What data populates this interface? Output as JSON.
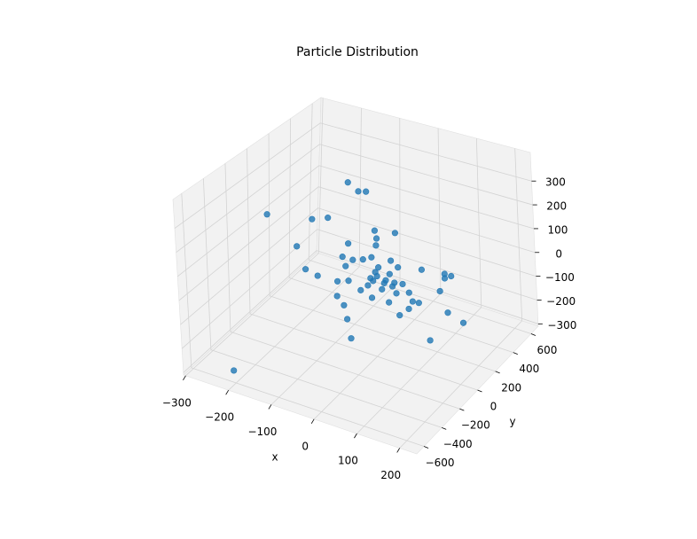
{
  "chart_data": {
    "type": "scatter3d",
    "title": "Particle Distribution",
    "x_label": "x",
    "y_label": "y",
    "color": "#1f77b4",
    "xlim": [
      -305,
      240
    ],
    "ylim": [
      -680,
      680
    ],
    "zlim": [
      -310,
      420
    ],
    "xticks": [
      {
        "value": -300,
        "label": "−300"
      },
      {
        "value": -200,
        "label": "−200"
      },
      {
        "value": -100,
        "label": "−100"
      },
      0,
      100,
      200
    ],
    "yticks": [
      {
        "value": -600,
        "label": "−600"
      },
      {
        "value": -400,
        "label": "−400"
      },
      {
        "value": -200,
        "label": "−200"
      },
      0,
      200,
      400,
      600
    ],
    "zticks": [
      {
        "value": -300,
        "label": "−300"
      },
      {
        "value": -200,
        "label": "−200"
      },
      {
        "value": -100,
        "label": "−100"
      },
      0,
      100,
      200,
      300
    ],
    "grid": true,
    "x": [
      -58,
      -33,
      -14,
      -259,
      -149,
      -110,
      -188,
      -62,
      4,
      54,
      8,
      6,
      -168,
      -139,
      -77,
      -70,
      -52,
      -27,
      -6,
      41,
      58,
      116,
      172,
      172,
      188,
      159,
      -91,
      -64,
      -93,
      -77,
      -70,
      -62,
      -8,
      33,
      58,
      81,
      91,
      106,
      83,
      130,
      176,
      213,
      -204,
      -17,
      6,
      27,
      48,
      17,
      -4,
      37,
      68,
      -35,
      52,
      2,
      23,
      -10,
      43,
      10
    ],
    "y": [
      0,
      0,
      0,
      0,
      0,
      0,
      0,
      0,
      0,
      0,
      0,
      0,
      0,
      0,
      0,
      0,
      0,
      0,
      0,
      0,
      0,
      0,
      0,
      0,
      0,
      0,
      0,
      0,
      0,
      0,
      0,
      0,
      0,
      0,
      0,
      0,
      0,
      0,
      0,
      0,
      0,
      0,
      -600,
      0,
      0,
      0,
      0,
      0,
      0,
      0,
      0,
      0,
      0,
      0,
      0,
      0,
      0,
      0
    ],
    "z": [
      393,
      367,
      375,
      154,
      191,
      217,
      53,
      132,
      220,
      235,
      189,
      159,
      -35,
      -47,
      68,
      32,
      68,
      83,
      103,
      113,
      94,
      114,
      125,
      107,
      124,
      48,
      -44,
      -27,
      -108,
      -138,
      -193,
      -270,
      -68,
      -65,
      -105,
      -66,
      -30,
      -28,
      2,
      -169,
      -31,
      -53,
      -261,
      -21,
      30,
      24,
      25,
      -19,
      5,
      55,
      30,
      -51,
      -17,
      45,
      10,
      13,
      7,
      69
    ]
  }
}
